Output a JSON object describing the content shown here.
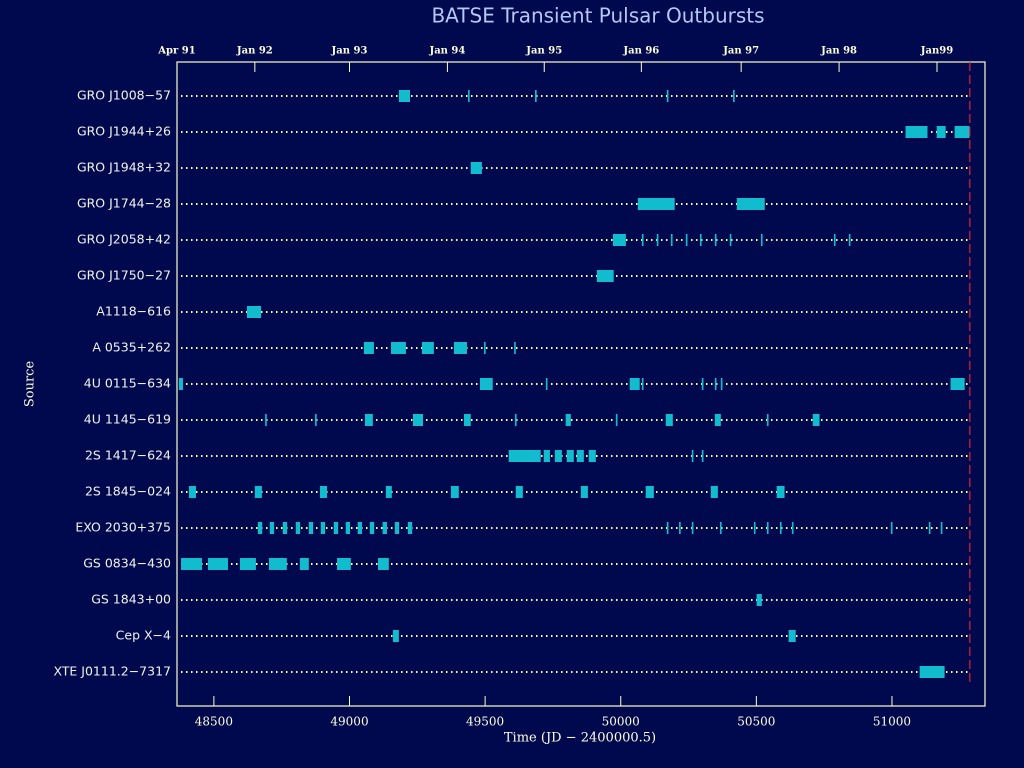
{
  "chart_data": {
    "type": "timeline",
    "title": "BATSE Transient Pulsar Outbursts",
    "xlabel": "Time (JD − 2400000.5)",
    "ylabel": "Source",
    "xlim": [
      48364,
      51343
    ],
    "xticks": [
      48500,
      49000,
      49500,
      50000,
      50500,
      51000
    ],
    "top_ticks": [
      {
        "value": 48364,
        "label": "Apr 91"
      },
      {
        "value": 48651,
        "label": "Jan 92"
      },
      {
        "value": 49000,
        "label": "Jan 93"
      },
      {
        "value": 49361,
        "label": "Jan 94"
      },
      {
        "value": 49718,
        "label": "Jan 95"
      },
      {
        "value": 50076,
        "label": "Jan 96"
      },
      {
        "value": 50444,
        "label": "Jan 97"
      },
      {
        "value": 50805,
        "label": "Jan 98"
      },
      {
        "value": 51166,
        "label": "Jan99"
      }
    ],
    "end_line": 51287,
    "end_line_color": "#e02030",
    "color": "#12bccf",
    "categories": [
      "GRO J1008−57",
      "GRO J1944+26",
      "GRO J1948+32",
      "GRO J1744−28",
      "GRO J2058+42",
      "GRO J1750−27",
      "A1118−616",
      "A 0535+262",
      "4U 0115−634",
      "4U 1145−619",
      "2S 1417−624",
      "2S 1845−024",
      "EXO 2030+375",
      "GS 0834−430",
      "GS 1843+00",
      "Cep X−4",
      "XTE J0111.2−7317"
    ],
    "segments": [
      [
        [
          49182,
          49223
        ],
        [
          49437,
          49443
        ],
        [
          49684,
          49690
        ],
        [
          50170,
          50176
        ],
        [
          50414,
          50420
        ]
      ],
      [
        [
          51050,
          51131
        ],
        [
          51165,
          51198
        ],
        [
          51231,
          51286
        ]
      ],
      [
        [
          49447,
          49488
        ]
      ],
      [
        [
          50063,
          50199
        ],
        [
          50428,
          50531
        ]
      ],
      [
        [
          49971,
          50019
        ],
        [
          50078,
          50084
        ],
        [
          50133,
          50139
        ],
        [
          50185,
          50191
        ],
        [
          50240,
          50246
        ],
        [
          50292,
          50298
        ],
        [
          50347,
          50353
        ],
        [
          50402,
          50408
        ],
        [
          50517,
          50523
        ],
        [
          50786,
          50792
        ],
        [
          50841,
          50847
        ]
      ],
      [
        [
          49912,
          49974
        ]
      ],
      [
        [
          48622,
          48674
        ]
      ],
      [
        [
          49053,
          49090
        ],
        [
          49153,
          49208
        ],
        [
          49267,
          49311
        ],
        [
          49385,
          49433
        ],
        [
          49496,
          49502
        ],
        [
          49607,
          49613
        ]
      ],
      [
        [
          48371,
          48386
        ],
        [
          49481,
          49528
        ],
        [
          49724,
          49730
        ],
        [
          50033,
          50070
        ],
        [
          50078,
          50084
        ],
        [
          50299,
          50305
        ],
        [
          50347,
          50353
        ],
        [
          50369,
          50375
        ],
        [
          51216,
          51268
        ]
      ],
      [
        [
          48689,
          48695
        ],
        [
          48873,
          48879
        ],
        [
          49057,
          49086
        ],
        [
          49234,
          49271
        ],
        [
          49422,
          49447
        ],
        [
          49610,
          49616
        ],
        [
          49797,
          49816
        ],
        [
          49982,
          49988
        ],
        [
          50166,
          50192
        ],
        [
          50347,
          50369
        ],
        [
          50539,
          50545
        ],
        [
          50708,
          50733
        ]
      ],
      [
        [
          49587,
          49705
        ],
        [
          49716,
          49739
        ],
        [
          49757,
          49783
        ],
        [
          49801,
          49827
        ],
        [
          49838,
          49864
        ],
        [
          49882,
          49908
        ],
        [
          50262,
          50268
        ],
        [
          50299,
          50305
        ]
      ],
      [
        [
          48408,
          48434
        ],
        [
          48651,
          48677
        ],
        [
          48891,
          48917
        ],
        [
          49134,
          49156
        ],
        [
          49374,
          49403
        ],
        [
          49613,
          49639
        ],
        [
          49853,
          49879
        ],
        [
          50092,
          50122
        ],
        [
          50332,
          50358
        ],
        [
          50575,
          50604
        ]
      ],
      [
        [
          48662,
          48678
        ],
        [
          48706,
          48722
        ],
        [
          48754,
          48770
        ],
        [
          48802,
          48818
        ],
        [
          48850,
          48866
        ],
        [
          48894,
          48910
        ],
        [
          48942,
          48958
        ],
        [
          48986,
          49002
        ],
        [
          49030,
          49046
        ],
        [
          49075,
          49091
        ],
        [
          49122,
          49138
        ],
        [
          49167,
          49183
        ],
        [
          49215,
          49231
        ],
        [
          50170,
          50176
        ],
        [
          50215,
          50221
        ],
        [
          50262,
          50268
        ],
        [
          50366,
          50372
        ],
        [
          50491,
          50497
        ],
        [
          50539,
          50545
        ],
        [
          50587,
          50593
        ],
        [
          50631,
          50637
        ],
        [
          50996,
          51002
        ],
        [
          51136,
          51142
        ],
        [
          51180,
          51186
        ]
      ],
      [
        [
          48379,
          48456
        ],
        [
          48478,
          48552
        ],
        [
          48596,
          48655
        ],
        [
          48703,
          48769
        ],
        [
          48817,
          48850
        ],
        [
          48954,
          49005
        ],
        [
          49105,
          49145
        ]
      ],
      [
        [
          50501,
          50520
        ]
      ],
      [
        [
          49160,
          49182
        ],
        [
          50619,
          50645
        ]
      ],
      [
        [
          51102,
          51194
        ]
      ]
    ]
  }
}
